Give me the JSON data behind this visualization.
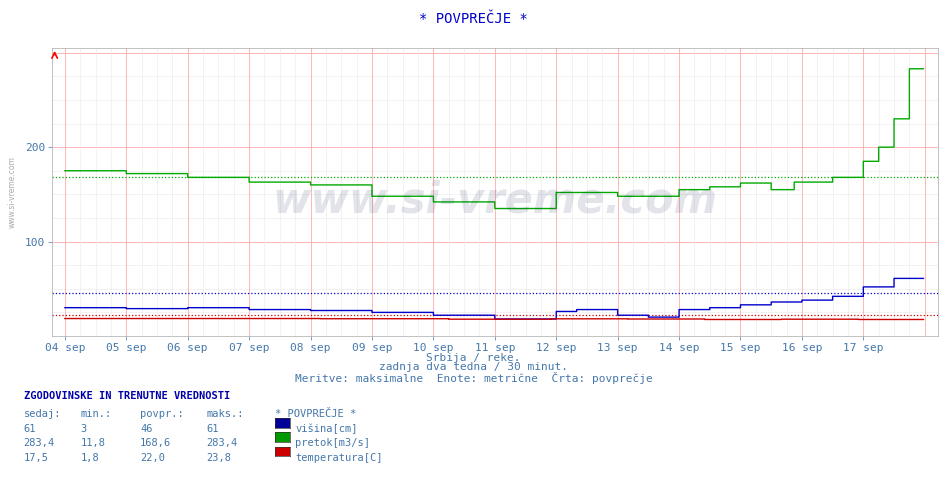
{
  "title": "* POVPREČJE *",
  "subtitle1": "Srbija / reke.",
  "subtitle2": "zadnja dva tedna / 30 minut.",
  "subtitle3": "Meritve: maksimalne  Enote: metrične  Črta: povprečje",
  "xlabel_dates": [
    "04 sep",
    "05 sep",
    "06 sep",
    "07 sep",
    "08 sep",
    "09 sep",
    "10 sep",
    "11 sep",
    "12 sep",
    "13 sep",
    "14 sep",
    "15 sep",
    "16 sep",
    "17 sep"
  ],
  "ylim_max": 300,
  "yticks": [
    100,
    200
  ],
  "background_color": "#ffffff",
  "plot_bg_color": "#ffffff",
  "title_color": "#0000cc",
  "text_color": "#4477aa",
  "legend_header": "ZGODOVINSKE IN TRENUTNE VREDNOSTI",
  "legend_cols": [
    "sedaj:",
    "min.:",
    "povpr.:",
    "maks.:"
  ],
  "legend_col_header": "* POVPREČJE *",
  "legend_row1": [
    "61",
    "3",
    "46",
    "61"
  ],
  "legend_row2": [
    "283,4",
    "11,8",
    "168,6",
    "283,4"
  ],
  "legend_row3": [
    "17,5",
    "1,8",
    "22,0",
    "23,8"
  ],
  "legend_label1": "višina[cm]",
  "legend_label2": "pretok[m3/s]",
  "legend_label3": "temperatura[C]",
  "legend_color1": "#000099",
  "legend_color2": "#009900",
  "legend_color3": "#cc0000",
  "line_blue_color": "#0000cc",
  "line_green_color": "#00aa00",
  "line_red_color": "#cc0000",
  "watermark": "www.si-vreme.com",
  "n_points": 672,
  "blue_avg": 46,
  "green_avg": 168.6,
  "red_avg": 22.0
}
